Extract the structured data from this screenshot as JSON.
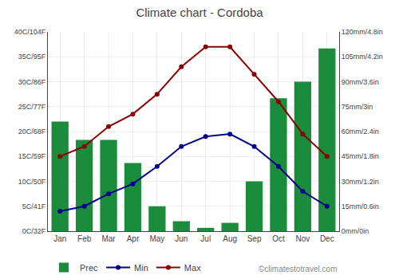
{
  "chart_data": {
    "type": "bar",
    "title": "Climate chart - Cordoba",
    "categories": [
      "Jan",
      "Feb",
      "Mar",
      "Apr",
      "May",
      "Jun",
      "Jul",
      "Aug",
      "Sep",
      "Oct",
      "Nov",
      "Dec"
    ],
    "series": [
      {
        "name": "Prec",
        "type": "bar",
        "axis": "y2",
        "color": "#1a8c3c",
        "values": [
          66,
          55,
          55,
          41,
          15,
          6,
          2,
          5,
          30,
          80,
          90,
          110
        ]
      },
      {
        "name": "Min",
        "type": "line",
        "marker": "circle",
        "color": "#00008b",
        "values": [
          4,
          5,
          7.5,
          9.5,
          13,
          17,
          19,
          19.5,
          17,
          13,
          8,
          5
        ]
      },
      {
        "name": "Max",
        "type": "line",
        "marker": "circle",
        "color": "#8b0000",
        "values": [
          15,
          17,
          21,
          23.5,
          27.5,
          33,
          37,
          37,
          31.5,
          26,
          19.5,
          15
        ]
      }
    ],
    "ylim": [
      0,
      40
    ],
    "yticks": [
      {
        "value": 0,
        "label": "0C/32F"
      },
      {
        "value": 5,
        "label": "5C/41F"
      },
      {
        "value": 10,
        "label": "10C/50F"
      },
      {
        "value": 15,
        "label": "15C/59F"
      },
      {
        "value": 20,
        "label": "20C/68F"
      },
      {
        "value": 25,
        "label": "25C/77F"
      },
      {
        "value": 30,
        "label": "30C/86F"
      },
      {
        "value": 35,
        "label": "35C/95F"
      },
      {
        "value": 40,
        "label": "40C/104F"
      }
    ],
    "y2lim": [
      0,
      120
    ],
    "y2ticks": [
      {
        "value": 0,
        "label": "0mm/0in"
      },
      {
        "value": 15,
        "label": "15mm/0.6in"
      },
      {
        "value": 30,
        "label": "30mm/1.2in"
      },
      {
        "value": 45,
        "label": "45mm/1.8in"
      },
      {
        "value": 60,
        "label": "60mm/2.4in"
      },
      {
        "value": 75,
        "label": "75mm/3in"
      },
      {
        "value": 90,
        "label": "90mm/3.6in"
      },
      {
        "value": 105,
        "label": "105mm/4.2in"
      },
      {
        "value": 120,
        "label": "120mm/4.8in"
      }
    ],
    "grid": true,
    "legend": "bottom left",
    "annotations": [
      "©climatestotravel.com"
    ]
  }
}
